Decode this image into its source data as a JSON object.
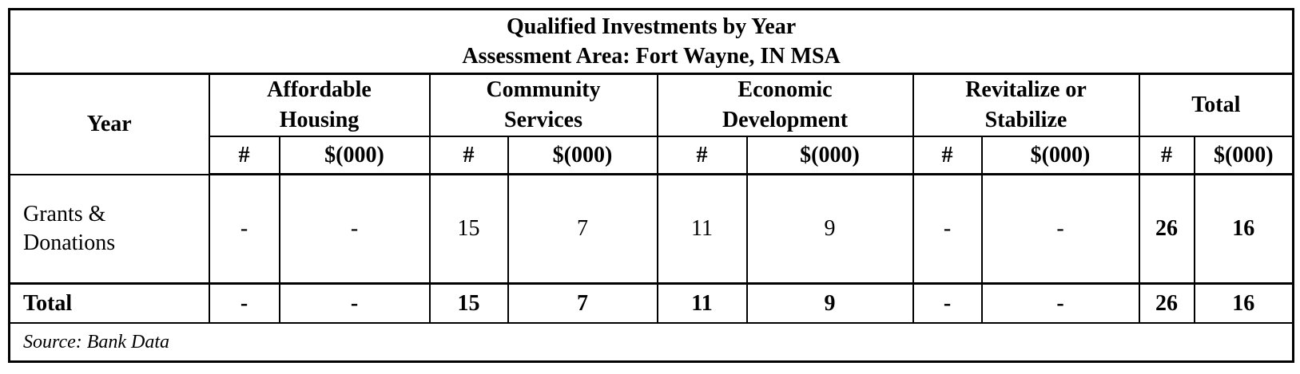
{
  "header": {
    "title": "Qualified Investments by Year",
    "subtitle": "Assessment Area: Fort Wayne, IN MSA"
  },
  "table": {
    "year_header": "Year",
    "groups": [
      "Affordable Housing",
      "Community Services",
      "Economic Development",
      "Revitalize or Stabilize",
      "Total"
    ],
    "subcolumns": [
      "#",
      "$(000)",
      "#",
      "$(000)",
      "#",
      "$(000)",
      "#",
      "$(000)",
      "#",
      "$(000)"
    ],
    "rows": [
      {
        "label": "Grants & Donations",
        "cells": [
          "-",
          "-",
          15,
          7,
          11,
          9,
          "-",
          "-",
          26,
          16
        ]
      }
    ],
    "total": {
      "label": "Total",
      "cells": [
        "-",
        "-",
        15,
        7,
        11,
        9,
        "-",
        "-",
        26,
        16
      ]
    }
  },
  "source": "Source: Bank Data"
}
